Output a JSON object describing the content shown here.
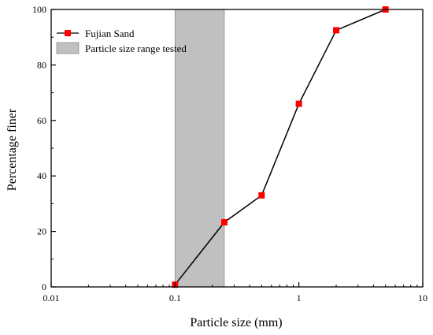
{
  "chart_data": {
    "type": "line",
    "xlabel": "Particle size (mm)",
    "ylabel": "Percentage finer",
    "xscale": "log",
    "xlim": [
      0.01,
      10
    ],
    "ylim": [
      0,
      100
    ],
    "x_ticks": [
      0.01,
      0.1,
      1,
      10
    ],
    "x_tick_labels": [
      "0.01",
      "0.1",
      "1",
      "10"
    ],
    "y_ticks": [
      0,
      20,
      40,
      60,
      80,
      100
    ],
    "y_tick_labels": [
      "0",
      "20",
      "40",
      "60",
      "80",
      "100"
    ],
    "grid": false,
    "legend_position": "top-left",
    "series": [
      {
        "name": "Fujian Sand",
        "marker": "square",
        "line_color": "#000000",
        "marker_color": "#ff0000",
        "points": [
          {
            "x": 0.1,
            "y": 0.8
          },
          {
            "x": 0.25,
            "y": 23.3
          },
          {
            "x": 0.5,
            "y": 33
          },
          {
            "x": 1.0,
            "y": 66
          },
          {
            "x": 2.0,
            "y": 92.5
          },
          {
            "x": 5.0,
            "y": 100
          }
        ]
      }
    ],
    "shaded_range": {
      "name": "Particle size range tested",
      "x_start": 0.1,
      "x_end": 0.25,
      "fill": "#c0c0c0"
    }
  }
}
